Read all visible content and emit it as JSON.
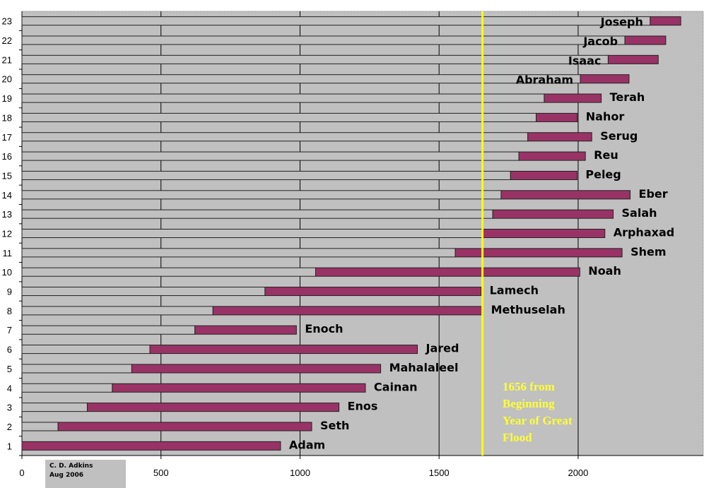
{
  "chart_data": {
    "type": "bar",
    "orientation": "horizontal",
    "stacked": true,
    "xlim": [
      0,
      2450
    ],
    "xticks": [
      0,
      500,
      1000,
      1500,
      2000
    ],
    "grid": "vertical",
    "categories": [
      "1",
      "2",
      "3",
      "4",
      "5",
      "6",
      "7",
      "8",
      "9",
      "10",
      "11",
      "12",
      "13",
      "14",
      "15",
      "16",
      "17",
      "18",
      "19",
      "20",
      "21",
      "22",
      "23"
    ],
    "names": [
      "Adam",
      "Seth",
      "Enos",
      "Cainan",
      "Mahalaleel",
      "Jared",
      "Enoch",
      "Methuselah",
      "Lamech",
      "Noah",
      "Shem",
      "Arphaxad",
      "Salah",
      "Eber",
      "Peleg",
      "Reu",
      "Serug",
      "Nahor",
      "Terah",
      "Abraham",
      "Isaac",
      "Jacob",
      "Joseph"
    ],
    "series": [
      {
        "values": [
          0,
          130,
          235,
          325,
          395,
          460,
          622,
          687,
          874,
          1056,
          1558,
          1658,
          1693,
          1723,
          1757,
          1787,
          1819,
          1849,
          1878,
          2008,
          2108,
          2168,
          2259
        ]
      },
      {
        "values": [
          930,
          912,
          905,
          910,
          895,
          962,
          365,
          969,
          777,
          950,
          600,
          438,
          433,
          464,
          239,
          239,
          230,
          148,
          205,
          175,
          180,
          147,
          110
        ]
      }
    ],
    "colors": {
      "background": "#c0c0c0",
      "offset_bar": "#c0c0c0",
      "life_bar": "#993366",
      "flood_line": "#ffff00",
      "note_text": "#ffff33"
    },
    "reference_line": {
      "x": 1656,
      "annotation": [
        "1656 from",
        "Beginning",
        "Year of Great",
        "Flood"
      ]
    }
  },
  "credit": {
    "line1": "C. D. Adkins",
    "line2": "Aug 2006"
  }
}
